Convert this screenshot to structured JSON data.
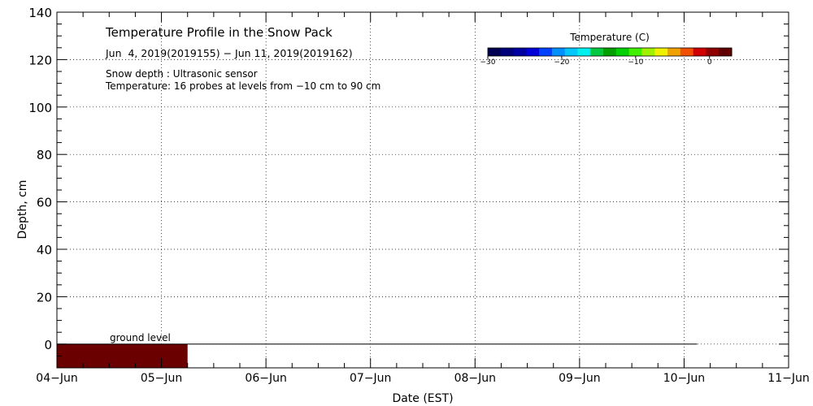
{
  "chart_data": {
    "type": "heatmap",
    "title": "Temperature Profile in the Snow Pack",
    "subtitle": "Jun  4, 2019(2019155) − Jun 11, 2019(2019162)",
    "notes": [
      "Snow depth : Ultrasonic sensor",
      "Temperature: 16 probes at levels from −10 cm to 90 cm"
    ],
    "xlabel": "Date (EST)",
    "ylabel": "Depth, cm",
    "x_ticks": [
      "04−Jun",
      "05−Jun",
      "06−Jun",
      "07−Jun",
      "08−Jun",
      "09−Jun",
      "10−Jun",
      "11−Jun"
    ],
    "xlim": [
      "2019-06-04",
      "2019-06-11"
    ],
    "ylim": [
      -10,
      140
    ],
    "y_ticks": [
      0,
      20,
      40,
      60,
      80,
      100,
      120,
      140
    ],
    "grid": true,
    "ground_level": {
      "label": "ground level",
      "depth": 0,
      "x_start": "2019-06-04",
      "x_end": "2019-06-10 03:00"
    },
    "heat_block": {
      "x_start": "2019-06-04",
      "x_end": "2019-06-05 06:00",
      "y_bottom": -10,
      "y_top": 0,
      "color": "#6b0000"
    },
    "colorbar": {
      "label": "Temperature (C)",
      "min": -30,
      "max": 3,
      "ticks": [
        {
          "value": -30,
          "label": "−30"
        },
        {
          "value": -20,
          "label": "−20"
        },
        {
          "value": -10,
          "label": "−10"
        },
        {
          "value": 0,
          "label": "0"
        }
      ],
      "colors": [
        "#000050",
        "#000078",
        "#0000a0",
        "#0000d8",
        "#0040ff",
        "#0090ff",
        "#00c8ff",
        "#00f0f0",
        "#00c840",
        "#00a000",
        "#00d000",
        "#40f000",
        "#a0f000",
        "#f0f000",
        "#f0a000",
        "#f05000",
        "#d00000",
        "#900000",
        "#600000"
      ]
    }
  }
}
